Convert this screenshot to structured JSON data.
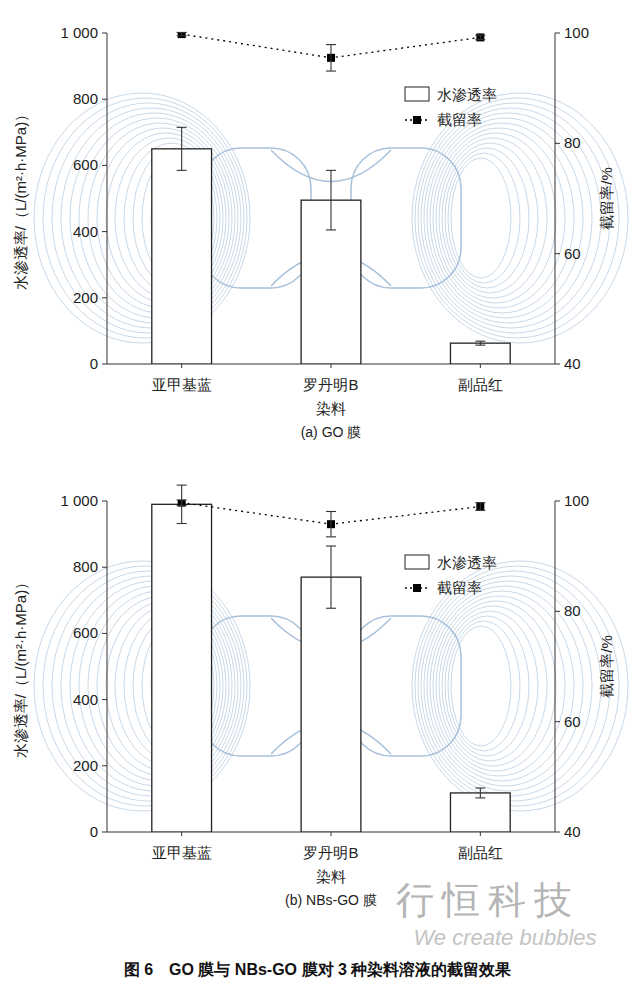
{
  "chart_data": [
    {
      "type": "bar",
      "title": "(a) GO 膜",
      "x_label": "染料",
      "y_label": "水渗透率/（L/(m²·h·MPa)）",
      "y2_label": "截留率/%",
      "categories": [
        "亚甲基蓝",
        "罗丹明B",
        "副品红"
      ],
      "series": [
        {
          "name": "水渗透率",
          "type": "bar",
          "color": "#ffffff",
          "values": [
            650,
            495,
            63
          ],
          "errors": [
            65,
            90,
            6
          ]
        },
        {
          "name": "截留率",
          "type": "line",
          "axis": "y2",
          "color": "#000000",
          "line_style": "dotted",
          "marker": "square",
          "values": [
            99.8,
            95.5,
            99.2
          ],
          "errors": [
            0.3,
            2.4,
            0.4
          ]
        }
      ],
      "ylim": [
        0,
        1000
      ],
      "yticks": [
        0,
        200,
        400,
        600,
        800,
        {
          "value": 1000,
          "label": "1 000"
        }
      ],
      "y2lim": [
        40,
        100
      ],
      "y2ticks": [
        40,
        60,
        80,
        100
      ],
      "legend": "upper right",
      "grid": false
    },
    {
      "type": "bar",
      "title": "(b) NBs-GO 膜",
      "x_label": "染料",
      "y_label": "水渗透率/（L/(m²·h·MPa)）",
      "y2_label": "截留率/%",
      "categories": [
        "亚甲基蓝",
        "罗丹明B",
        "副品红"
      ],
      "series": [
        {
          "name": "水渗透率",
          "type": "bar",
          "color": "#ffffff",
          "values": [
            990,
            770,
            118
          ],
          "errors": [
            58,
            94,
            15
          ]
        },
        {
          "name": "截留率",
          "type": "line",
          "axis": "y2",
          "color": "#000000",
          "line_style": "dotted",
          "marker": "square",
          "values": [
            99.7,
            95.8,
            99.0
          ],
          "errors": [
            0.5,
            2.3,
            0.7
          ]
        }
      ],
      "ylim": [
        0,
        1000
      ],
      "yticks": [
        0,
        200,
        400,
        600,
        800,
        {
          "value": 1000,
          "label": "1 000"
        }
      ],
      "y2lim": [
        40,
        100
      ],
      "y2ticks": [
        40,
        60,
        80,
        100
      ],
      "legend": "upper right",
      "grid": false
    }
  ],
  "caption": "图 6　GO 膜与 NBs-GO 膜对 3 种染料溶液的截留效果",
  "watermark": {
    "title": "行恒科技",
    "subtitle": "We create bubbles"
  }
}
